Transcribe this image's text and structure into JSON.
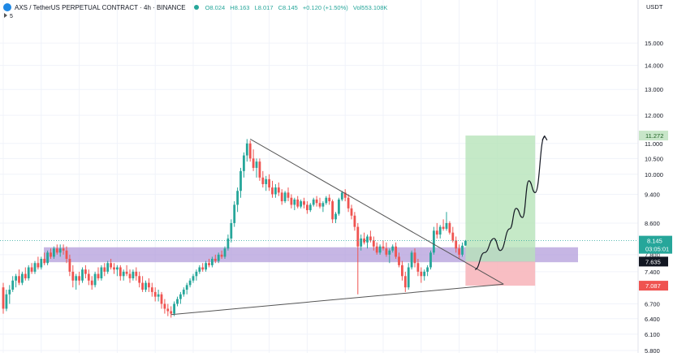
{
  "header": {
    "symbol_title": "AXS / TetherUS PERPETUAL CONTRACT · 4h · BINANCE",
    "ohlc": [
      "O8.024",
      "H8.163",
      "L8.017",
      "C8.145",
      "+0.120 (+1.50%)",
      "Vol553.108K"
    ],
    "indicator_count": "5",
    "currency": "USDT"
  },
  "colors": {
    "up": "#26a69a",
    "down": "#ef5350",
    "profit_zone": "#b7e3b9",
    "stop_zone": "#f7b3b9",
    "support_zone": "#b39ddb",
    "trend_line": "#555555",
    "price_tag": "#26a69a",
    "stop_tag": "#ef5350",
    "target_tag": "#c8e6c9",
    "entry_tag": "#131722"
  },
  "icons": {
    "symbol": "axs-coin-icon",
    "live": "live-dot-icon",
    "indicators": "chevron-right-icon"
  },
  "chart_data": {
    "type": "candlestick",
    "title": "AXS / TetherUS PERPETUAL CONTRACT · 4h · BINANCE",
    "y_axis": {
      "side": "right",
      "scale": "log",
      "range": [
        5.8,
        16.3
      ],
      "ticks": [
        15.0,
        14.0,
        13.0,
        12.0,
        11.0,
        10.5,
        10.0,
        9.4,
        8.6,
        7.8,
        7.4,
        6.7,
        6.4,
        6.1,
        5.8
      ],
      "tick_labels": [
        "15.000",
        "14.000",
        "13.000",
        "12.000",
        "11.000",
        "10.500",
        "10.000",
        "9.400",
        "8.600",
        "7.800",
        "7.400",
        "6.700",
        "6.400",
        "6.100",
        "5.800"
      ]
    },
    "grid": true,
    "current_price": {
      "value": 8.145,
      "label": "8.145",
      "countdown": "03:05:01"
    },
    "price_tags": [
      {
        "name": "target",
        "value": 11.272,
        "label": "11.272"
      },
      {
        "name": "entry",
        "value": 7.635,
        "label": "7.635"
      },
      {
        "name": "stop",
        "value": 7.087,
        "label": "7.087"
      }
    ],
    "position": {
      "entry": 7.635,
      "target": 11.272,
      "stop": 7.087,
      "from_bar": 146,
      "to_bar": 168
    },
    "support_zone": {
      "low": 7.62,
      "high": 7.98
    },
    "trend_lines": [
      {
        "from": [
          78,
          11.15
        ],
        "to": [
          158,
          7.12
        ]
      },
      {
        "from": [
          53,
          6.48
        ],
        "to": [
          158,
          7.12
        ]
      }
    ],
    "projection": [
      [
        149,
        7.45
      ],
      [
        152,
        7.85
      ],
      [
        155,
        8.2
      ],
      [
        157,
        7.9
      ],
      [
        160,
        8.45
      ],
      [
        162,
        9.0
      ],
      [
        164,
        8.75
      ],
      [
        166,
        9.8
      ],
      [
        168,
        9.45
      ],
      [
        171,
        11.25
      ]
    ],
    "candles": [
      [
        7.05,
        7.15,
        6.5,
        6.6
      ],
      [
        6.6,
        7.0,
        6.55,
        6.9
      ],
      [
        6.9,
        7.1,
        6.7,
        7.0
      ],
      [
        7.0,
        7.3,
        6.95,
        7.2
      ],
      [
        7.2,
        7.35,
        7.05,
        7.3
      ],
      [
        7.3,
        7.45,
        7.1,
        7.15
      ],
      [
        7.15,
        7.4,
        7.1,
        7.35
      ],
      [
        7.35,
        7.5,
        7.2,
        7.25
      ],
      [
        7.25,
        7.55,
        7.2,
        7.5
      ],
      [
        7.5,
        7.6,
        7.35,
        7.4
      ],
      [
        7.4,
        7.65,
        7.35,
        7.6
      ],
      [
        7.6,
        7.75,
        7.45,
        7.5
      ],
      [
        7.5,
        7.75,
        7.45,
        7.7
      ],
      [
        7.7,
        7.85,
        7.55,
        7.6
      ],
      [
        7.6,
        7.9,
        7.55,
        7.85
      ],
      [
        7.85,
        7.95,
        7.7,
        7.75
      ],
      [
        7.75,
        8.0,
        7.7,
        7.95
      ],
      [
        7.95,
        8.05,
        7.8,
        7.85
      ],
      [
        7.85,
        8.05,
        7.75,
        7.95
      ],
      [
        7.95,
        8.05,
        7.8,
        7.9
      ],
      [
        7.9,
        8.0,
        7.6,
        7.7
      ],
      [
        7.7,
        7.8,
        7.3,
        7.4
      ],
      [
        7.4,
        7.55,
        7.05,
        7.2
      ],
      [
        7.2,
        7.35,
        7.0,
        7.3
      ],
      [
        7.3,
        7.4,
        7.1,
        7.2
      ],
      [
        7.2,
        7.5,
        7.15,
        7.45
      ],
      [
        7.45,
        7.55,
        7.25,
        7.35
      ],
      [
        7.35,
        7.45,
        7.1,
        7.2
      ],
      [
        7.2,
        7.3,
        7.0,
        7.1
      ],
      [
        7.1,
        7.4,
        7.05,
        7.35
      ],
      [
        7.35,
        7.5,
        7.2,
        7.25
      ],
      [
        7.25,
        7.55,
        7.2,
        7.5
      ],
      [
        7.5,
        7.6,
        7.3,
        7.4
      ],
      [
        7.4,
        7.65,
        7.35,
        7.6
      ],
      [
        7.6,
        7.7,
        7.45,
        7.5
      ],
      [
        7.5,
        7.6,
        7.35,
        7.45
      ],
      [
        7.45,
        7.55,
        7.3,
        7.5
      ],
      [
        7.5,
        7.55,
        7.2,
        7.3
      ],
      [
        7.3,
        7.45,
        7.2,
        7.4
      ],
      [
        7.4,
        7.55,
        7.3,
        7.35
      ],
      [
        7.35,
        7.45,
        7.15,
        7.25
      ],
      [
        7.25,
        7.45,
        7.2,
        7.4
      ],
      [
        7.4,
        7.5,
        7.2,
        7.3
      ],
      [
        7.3,
        7.4,
        7.05,
        7.15
      ],
      [
        7.15,
        7.3,
        6.95,
        7.0
      ],
      [
        7.0,
        7.2,
        6.95,
        7.15
      ],
      [
        7.15,
        7.25,
        6.95,
        7.05
      ],
      [
        7.05,
        7.15,
        6.85,
        6.95
      ],
      [
        6.95,
        7.05,
        6.75,
        6.85
      ],
      [
        6.85,
        7.0,
        6.75,
        6.9
      ],
      [
        6.9,
        6.95,
        6.6,
        6.7
      ],
      [
        6.7,
        6.8,
        6.5,
        6.6
      ],
      [
        6.6,
        6.7,
        6.45,
        6.55
      ],
      [
        6.55,
        6.65,
        6.42,
        6.5
      ],
      [
        6.5,
        6.75,
        6.45,
        6.7
      ],
      [
        6.7,
        6.85,
        6.65,
        6.8
      ],
      [
        6.8,
        6.95,
        6.7,
        6.9
      ],
      [
        6.9,
        7.05,
        6.85,
        7.0
      ],
      [
        7.0,
        7.15,
        6.9,
        7.1
      ],
      [
        7.1,
        7.25,
        7.05,
        7.2
      ],
      [
        7.2,
        7.35,
        7.15,
        7.3
      ],
      [
        7.3,
        7.45,
        7.2,
        7.4
      ],
      [
        7.4,
        7.55,
        7.35,
        7.5
      ],
      [
        7.5,
        7.6,
        7.4,
        7.45
      ],
      [
        7.45,
        7.65,
        7.4,
        7.6
      ],
      [
        7.6,
        7.7,
        7.5,
        7.55
      ],
      [
        7.55,
        7.75,
        7.5,
        7.7
      ],
      [
        7.7,
        7.8,
        7.6,
        7.65
      ],
      [
        7.65,
        7.85,
        7.6,
        7.8
      ],
      [
        7.8,
        7.9,
        7.7,
        7.75
      ],
      [
        7.75,
        8.0,
        7.7,
        7.95
      ],
      [
        7.95,
        8.3,
        7.9,
        8.2
      ],
      [
        8.2,
        8.7,
        8.1,
        8.6
      ],
      [
        8.6,
        9.2,
        8.5,
        9.1
      ],
      [
        9.1,
        9.6,
        8.9,
        9.5
      ],
      [
        9.5,
        10.2,
        9.3,
        10.1
      ],
      [
        10.1,
        10.7,
        9.9,
        10.6
      ],
      [
        10.6,
        11.15,
        10.4,
        11.0
      ],
      [
        11.0,
        11.1,
        10.4,
        10.5
      ],
      [
        10.5,
        10.8,
        10.1,
        10.2
      ],
      [
        10.2,
        10.5,
        9.9,
        10.4
      ],
      [
        10.4,
        10.5,
        9.8,
        9.9
      ],
      [
        9.9,
        10.1,
        9.6,
        9.7
      ],
      [
        9.7,
        9.95,
        9.5,
        9.85
      ],
      [
        9.85,
        10.0,
        9.5,
        9.6
      ],
      [
        9.6,
        9.8,
        9.3,
        9.4
      ],
      [
        9.4,
        9.7,
        9.3,
        9.6
      ],
      [
        9.6,
        9.75,
        9.35,
        9.45
      ],
      [
        9.45,
        9.55,
        9.1,
        9.2
      ],
      [
        9.2,
        9.5,
        9.15,
        9.45
      ],
      [
        9.45,
        9.6,
        9.2,
        9.3
      ],
      [
        9.3,
        9.4,
        9.0,
        9.1
      ],
      [
        9.1,
        9.3,
        8.95,
        9.25
      ],
      [
        9.25,
        9.35,
        9.0,
        9.05
      ],
      [
        9.05,
        9.25,
        9.0,
        9.2
      ],
      [
        9.2,
        9.3,
        9.0,
        9.1
      ],
      [
        9.1,
        9.2,
        8.85,
        8.95
      ],
      [
        8.95,
        9.15,
        8.9,
        9.1
      ],
      [
        9.1,
        9.3,
        9.05,
        9.25
      ],
      [
        9.25,
        9.35,
        9.05,
        9.15
      ],
      [
        9.15,
        9.3,
        9.0,
        9.05
      ],
      [
        9.05,
        9.2,
        8.9,
        9.15
      ],
      [
        9.15,
        9.35,
        9.1,
        9.3
      ],
      [
        9.3,
        9.4,
        9.1,
        9.2
      ],
      [
        9.2,
        9.25,
        8.6,
        8.7
      ],
      [
        8.7,
        8.9,
        8.6,
        8.85
      ],
      [
        8.85,
        9.3,
        8.8,
        9.25
      ],
      [
        9.25,
        9.5,
        9.2,
        9.45
      ],
      [
        9.45,
        9.55,
        9.2,
        9.3
      ],
      [
        9.3,
        9.4,
        8.9,
        9.0
      ],
      [
        9.0,
        9.1,
        8.7,
        8.8
      ],
      [
        8.8,
        8.9,
        8.4,
        8.5
      ],
      [
        8.5,
        8.6,
        6.9,
        8.0
      ],
      [
        8.0,
        8.3,
        7.9,
        8.2
      ],
      [
        8.2,
        8.35,
        8.05,
        8.1
      ],
      [
        8.1,
        8.3,
        7.95,
        8.25
      ],
      [
        8.25,
        8.4,
        8.1,
        8.15
      ],
      [
        8.15,
        8.25,
        7.9,
        8.0
      ],
      [
        8.0,
        8.1,
        7.8,
        7.85
      ],
      [
        7.85,
        8.05,
        7.8,
        8.0
      ],
      [
        8.0,
        8.15,
        7.9,
        7.95
      ],
      [
        7.95,
        8.1,
        7.75,
        7.8
      ],
      [
        7.8,
        7.95,
        7.6,
        7.9
      ],
      [
        7.9,
        8.05,
        7.85,
        8.0
      ],
      [
        8.0,
        8.1,
        7.7,
        7.75
      ],
      [
        7.75,
        7.85,
        7.5,
        7.55
      ],
      [
        7.55,
        7.65,
        7.2,
        7.3
      ],
      [
        7.3,
        7.4,
        6.95,
        7.05
      ],
      [
        7.05,
        7.6,
        7.0,
        7.5
      ],
      [
        7.5,
        7.9,
        7.45,
        7.85
      ],
      [
        7.85,
        7.95,
        7.5,
        7.6
      ],
      [
        7.6,
        7.7,
        7.3,
        7.4
      ],
      [
        7.4,
        7.5,
        7.15,
        7.3
      ],
      [
        7.3,
        7.45,
        7.2,
        7.4
      ],
      [
        7.4,
        7.55,
        7.3,
        7.5
      ],
      [
        7.5,
        7.9,
        7.45,
        7.85
      ],
      [
        7.85,
        8.5,
        7.8,
        8.4
      ],
      [
        8.4,
        8.6,
        8.2,
        8.3
      ],
      [
        8.3,
        8.55,
        8.2,
        8.5
      ],
      [
        8.5,
        8.7,
        8.4,
        8.45
      ],
      [
        8.45,
        8.9,
        8.4,
        8.6
      ],
      [
        8.6,
        8.65,
        8.3,
        8.35
      ],
      [
        8.35,
        8.5,
        8.1,
        8.15
      ],
      [
        8.15,
        8.25,
        7.85,
        7.95
      ],
      [
        7.95,
        8.05,
        7.7,
        7.8
      ],
      [
        7.8,
        8.1,
        7.75,
        8.02
      ],
      [
        8.024,
        8.163,
        8.017,
        8.145
      ]
    ]
  }
}
